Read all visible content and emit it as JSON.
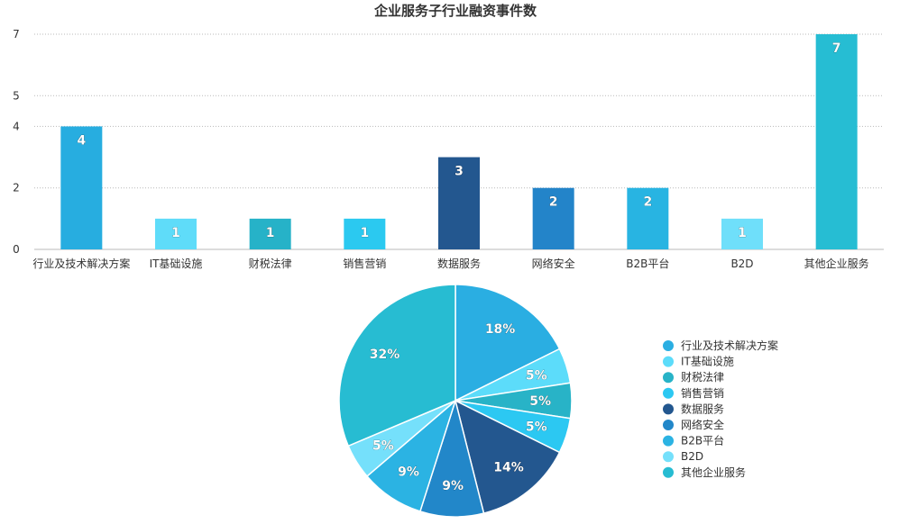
{
  "chart_data": [
    {
      "type": "bar",
      "title": "企业服务子行业融资事件数",
      "categories": [
        "行业及技术解决方案",
        "IT基础设施",
        "财税法律",
        "销售营销",
        "数据服务",
        "网络安全",
        "B2B平台",
        "B2D",
        "其他企业服务"
      ],
      "values": [
        4,
        1,
        1,
        1,
        3,
        2,
        2,
        1,
        7
      ],
      "value_labels": [
        "4",
        "1",
        "1",
        "1",
        "3",
        "2",
        "2",
        "1",
        "7"
      ],
      "colors": [
        "#27ade0",
        "#5fdcf9",
        "#26b2c8",
        "#2bc9f0",
        "#23578f",
        "#2384c9",
        "#28b4e2",
        "#6fdffa",
        "#26bdd3"
      ],
      "ytick_labels": [
        "0",
        "2",
        "4",
        "5",
        "7"
      ],
      "grid": true,
      "legend": "none"
    },
    {
      "type": "pie",
      "categories": [
        "行业及技术解决方案",
        "IT基础设施",
        "财税法律",
        "销售营销",
        "数据服务",
        "网络安全",
        "B2B平台",
        "B2D",
        "其他企业服务"
      ],
      "values": [
        18,
        5,
        5,
        5,
        14,
        9,
        9,
        5,
        32
      ],
      "labels": [
        "18%",
        "5%",
        "5%",
        "5%",
        "14%",
        "9%",
        "9%",
        "5%",
        "32%"
      ],
      "colors": [
        "#2aaee2",
        "#5cdcfa",
        "#28b3c7",
        "#2cc8f2",
        "#23578f",
        "#2287c9",
        "#2bb3e3",
        "#75e0fb",
        "#27bcd2"
      ],
      "legend": "right"
    }
  ]
}
